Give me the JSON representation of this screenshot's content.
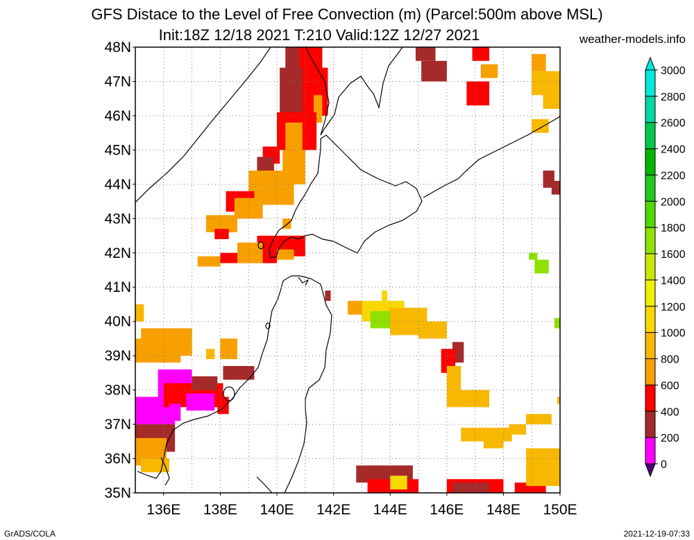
{
  "title": {
    "line1": "GFS Distace to the Level of Free Convection (m) (Parcel:500m above MSL)",
    "line2": "Init:18Z 12/18 2021 T:210 Valid:12Z 12/27 2021",
    "site": "weather-models.info"
  },
  "axes": {
    "lat_labels": [
      "48N",
      "47N",
      "46N",
      "45N",
      "44N",
      "43N",
      "42N",
      "41N",
      "40N",
      "39N",
      "38N",
      "37N",
      "36N",
      "35N"
    ],
    "lon_labels": [
      "136E",
      "138E",
      "140E",
      "142E",
      "144E",
      "146E",
      "148E",
      "150E"
    ]
  },
  "colorbar": {
    "labels": [
      "3000",
      "2800",
      "2600",
      "2400",
      "2200",
      "2000",
      "1800",
      "1600",
      "1400",
      "1200",
      "1000",
      "800",
      "600",
      "400",
      "200",
      "0"
    ],
    "colors": [
      "#ffffff",
      "#00e8d8",
      "#00d8a0",
      "#00c850",
      "#00b400",
      "#20c820",
      "#50d800",
      "#90e000",
      "#c8e800",
      "#f0f000",
      "#f8d800",
      "#f8b800",
      "#f8a000",
      "#ff0000",
      "#a52a2a",
      "#ff00ff",
      "#4b0082"
    ]
  },
  "legend_units": "m",
  "footer": {
    "left": "GrADS/COLA",
    "right": "2021-12-19-07:33"
  },
  "map": {
    "region": "Northern Japan / Sea of Japan / Hokkaido",
    "lat_range": [
      35,
      48
    ],
    "lon_range": [
      135,
      150
    ],
    "grid": "dotted",
    "colors": {
      "pink": "#ff00ff",
      "brown": "#a52a2a",
      "red": "#ff0000",
      "orange": "#f8a000",
      "lorange": "#f8b800",
      "yellow": "#f8d800",
      "lime": "#90e000"
    }
  }
}
